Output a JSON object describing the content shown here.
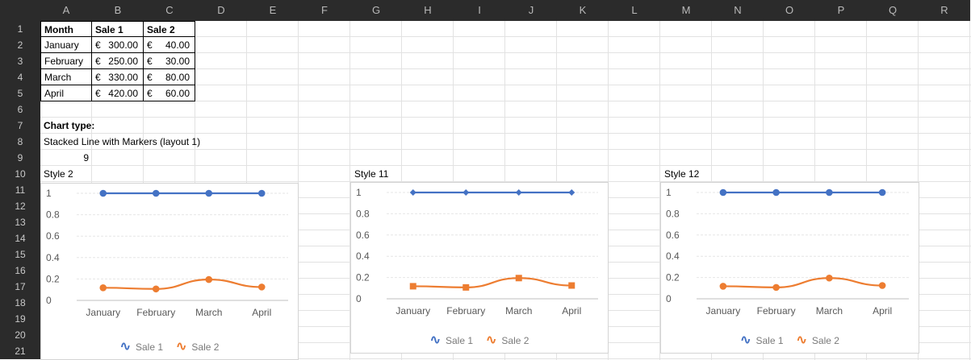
{
  "columns": [
    "A",
    "B",
    "C",
    "D",
    "E",
    "F",
    "G",
    "H",
    "I",
    "J",
    "K",
    "L",
    "M",
    "N",
    "O",
    "P",
    "Q",
    "R"
  ],
  "rows": [
    "1",
    "2",
    "3",
    "4",
    "5",
    "6",
    "7",
    "8",
    "9",
    "10",
    "11",
    "12",
    "13",
    "14",
    "15",
    "16",
    "17",
    "18",
    "19",
    "20",
    "21"
  ],
  "table": {
    "headers": [
      "Month",
      "Sale 1",
      "Sale 2"
    ],
    "currency": "€",
    "rows": [
      {
        "month": "January",
        "sale1": "300.00",
        "sale2": "40.00"
      },
      {
        "month": "February",
        "sale1": "250.00",
        "sale2": "30.00"
      },
      {
        "month": "March",
        "sale1": "330.00",
        "sale2": "80.00"
      },
      {
        "month": "April",
        "sale1": "420.00",
        "sale2": "60.00"
      }
    ]
  },
  "notes": {
    "chart_type_label": "Chart type:",
    "chart_type_value": "Stacked Line with Markers (layout 1)",
    "number": "9"
  },
  "colors": {
    "sale1": "#4472c4",
    "sale2": "#ed7d31"
  },
  "charts": [
    {
      "style_label": "Style 2",
      "marker_sale1": "circle",
      "marker_sale2": "circle"
    },
    {
      "style_label": "Style 11",
      "marker_sale1": "diamond",
      "marker_sale2": "square"
    },
    {
      "style_label": "Style 12",
      "marker_sale1": "circle",
      "marker_sale2": "circle"
    }
  ],
  "chart_data": {
    "type": "line",
    "categories": [
      "January",
      "February",
      "March",
      "April"
    ],
    "series": [
      {
        "name": "Sale 1",
        "values": [
          1,
          1,
          1,
          1
        ]
      },
      {
        "name": "Sale 2",
        "values": [
          0.118,
          0.107,
          0.195,
          0.125
        ]
      }
    ],
    "ylim": [
      0,
      1
    ],
    "y_ticks": [
      "0",
      "0.2",
      "0.4",
      "0.6",
      "0.8",
      "1"
    ],
    "grid": true,
    "legend": "bottom"
  }
}
